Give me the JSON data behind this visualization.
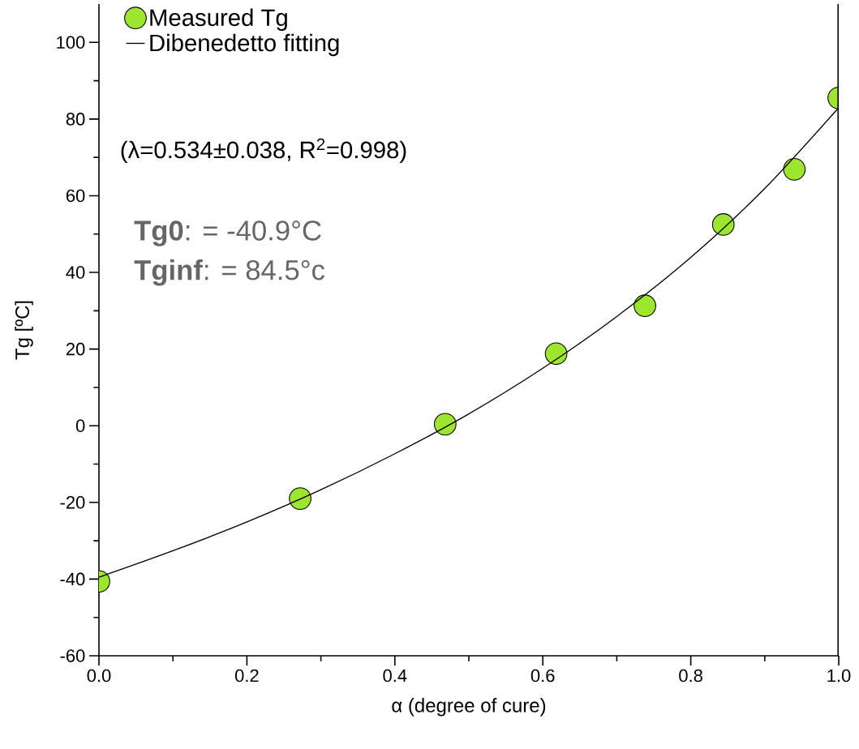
{
  "chart_data": {
    "type": "scatter",
    "xlabel": "α (degree of cure)",
    "ylabel": "Tg [ºC]",
    "xlim": [
      0,
      1.0
    ],
    "ylim": [
      -60,
      110
    ],
    "xticks": [
      {
        "value": 0,
        "label": "0.0"
      },
      {
        "value": 0.2,
        "label": "0.2"
      },
      {
        "value": 0.4,
        "label": "0.4"
      },
      {
        "value": 0.6,
        "label": "0.6"
      },
      {
        "value": 0.8,
        "label": "0.8"
      },
      {
        "value": 1.0,
        "label": "1.0"
      }
    ],
    "yticks": [
      -60,
      -40,
      -20,
      0,
      20,
      40,
      60,
      80,
      100
    ],
    "legend": "top left",
    "grid": false,
    "series": [
      {
        "name": "Measured Tg",
        "marker": "circle",
        "color": "#9ee530",
        "x": [
          0,
          0.272,
          0.468,
          0.618,
          0.738,
          0.844,
          0.94,
          1.0
        ],
        "values": [
          -40.6,
          -19,
          0.4,
          18.8,
          31.3,
          52.5,
          66.9,
          85.5
        ]
      },
      {
        "name": "Dibenedetto fitting",
        "type": "line",
        "marker": "none",
        "color": "#000000",
        "x": [
          0,
          0.1,
          0.2,
          0.3,
          0.4,
          0.5,
          0.6,
          0.7,
          0.8,
          0.9,
          1.0
        ],
        "values": [
          -39.5,
          -32.6,
          -25.1,
          -16.7,
          -7.3,
          3.1,
          15.0,
          28.5,
          43.9,
          61.9,
          83.0
        ]
      }
    ],
    "annotations": [
      "(λ=0.534±0.038, R$^{2}$=0.998)",
      "**Tg0**: = -40.9°C",
      "**Tginf**: = 84.5°c"
    ]
  }
}
